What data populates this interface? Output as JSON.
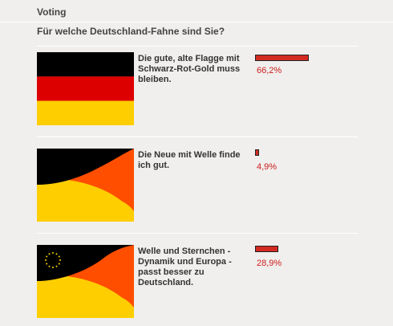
{
  "header": {
    "title": "Voting"
  },
  "poll": {
    "question": "Für welche Deutschland-Fahne sind Sie?",
    "options": [
      {
        "label": "Die gute, alte Flagge mit Schwarz-Rot-Gold muss bleiben.",
        "percent_text": "66,2%",
        "percent": 66.2
      },
      {
        "label": "Die Neue mit Welle finde ich gut.",
        "percent_text": "4,9%",
        "percent": 4.9
      },
      {
        "label": "Welle und Sternchen - Dynamik und Europa - passt besser zu Deutschland.",
        "percent_text": "28,9%",
        "percent": 28.9
      }
    ]
  },
  "colors": {
    "black": "#000000",
    "red": "#dd0000",
    "gold": "#ffce00",
    "orange": "#ff4e00",
    "bar": "#d32a22",
    "percent_text": "#cc1d1d",
    "star": "#ffd400"
  },
  "icons": [
    "flag-classic-icon",
    "flag-wave-icon",
    "flag-wave-stars-icon"
  ]
}
